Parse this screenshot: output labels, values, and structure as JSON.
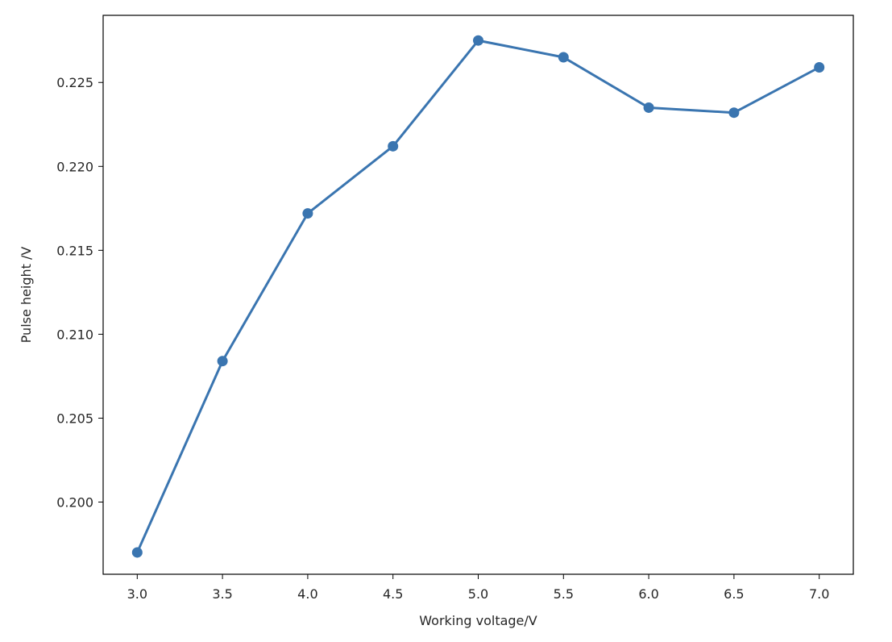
{
  "chart_data": {
    "type": "line",
    "title": "",
    "xlabel": "Working voltage/V",
    "ylabel": "Pulse height /V",
    "xlim": [
      2.8,
      7.2
    ],
    "ylim": [
      0.1957,
      0.229
    ],
    "xticks": [
      3.0,
      3.5,
      4.0,
      4.5,
      5.0,
      5.5,
      6.0,
      6.5,
      7.0
    ],
    "xtick_labels": [
      "3.0",
      "3.5",
      "4.0",
      "4.5",
      "5.0",
      "5.5",
      "6.0",
      "6.5",
      "7.0"
    ],
    "yticks": [
      0.2,
      0.205,
      0.21,
      0.215,
      0.22,
      0.225
    ],
    "ytick_labels": [
      "0.200",
      "0.205",
      "0.210",
      "0.215",
      "0.220",
      "0.225"
    ],
    "grid": false,
    "legend": "none",
    "series": [
      {
        "color": "#3a75b0",
        "marker": "circle",
        "x": [
          3.0,
          3.5,
          4.0,
          4.5,
          5.0,
          5.5,
          6.0,
          6.5,
          7.0
        ],
        "y": [
          0.197,
          0.2084,
          0.2172,
          0.2212,
          0.2275,
          0.2265,
          0.2235,
          0.2232,
          0.2259
        ]
      }
    ]
  }
}
